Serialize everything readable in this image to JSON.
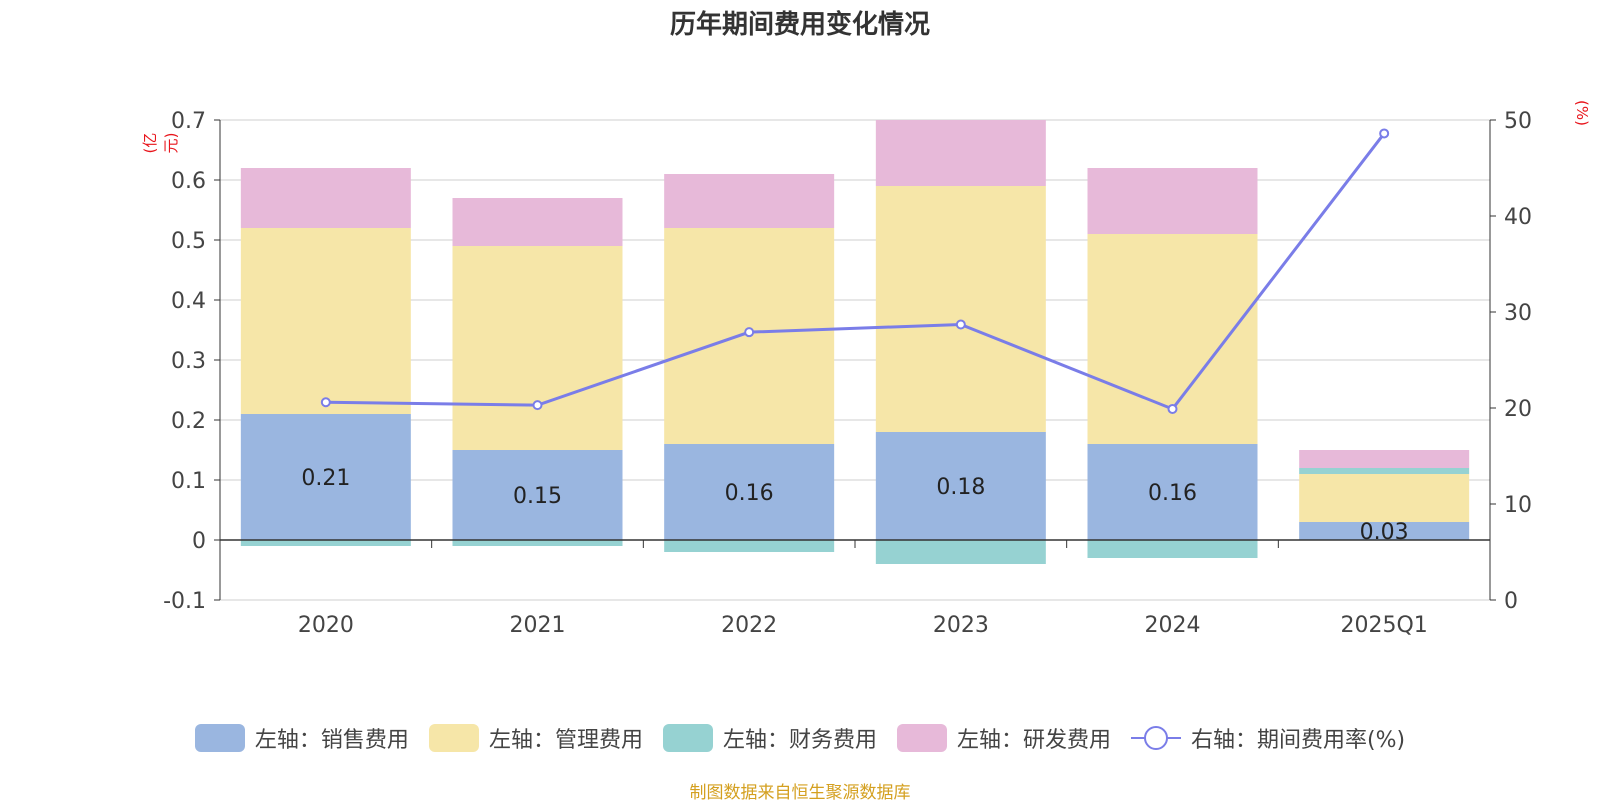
{
  "title": "历年期间费用变化情况",
  "units": {
    "left": "(亿元)",
    "right": "(%)"
  },
  "source": "制图数据来自恒生聚源数据库",
  "colors": {
    "sales": "#9ab6e0",
    "mgmt": "#f6e6a8",
    "fin": "#96d2d2",
    "rd": "#e7b9d9",
    "line": "#7a7de8",
    "accent": "#e8141b"
  },
  "chart_data": {
    "type": "bar",
    "stacked": true,
    "title": "历年期间费用变化情况",
    "categories": [
      "2020",
      "2021",
      "2022",
      "2023",
      "2024",
      "2025Q1"
    ],
    "left_axis": {
      "label": "(亿元)",
      "ylim": [
        -0.1,
        0.7
      ],
      "ticks": [
        -0.1,
        0,
        0.1,
        0.2,
        0.3,
        0.4,
        0.5,
        0.6,
        0.7
      ],
      "tick_labels": [
        "-0.1",
        "0",
        "0.1",
        "0.2",
        "0.3",
        "0.4",
        "0.5",
        "0.6",
        "0.7"
      ]
    },
    "right_axis": {
      "label": "(%)",
      "ylim": [
        0,
        50
      ],
      "ticks": [
        0,
        10,
        20,
        30,
        40,
        50
      ],
      "tick_labels": [
        "0",
        "10",
        "20",
        "30",
        "40",
        "50"
      ]
    },
    "series": [
      {
        "key": "sales",
        "name": "左轴：销售费用",
        "axis": "left",
        "type": "bar",
        "values": [
          0.21,
          0.15,
          0.16,
          0.18,
          0.16,
          0.03
        ],
        "labels": [
          "0.21",
          "0.15",
          "0.16",
          "0.18",
          "0.16",
          "0.03"
        ]
      },
      {
        "key": "mgmt",
        "name": "左轴：管理费用",
        "axis": "left",
        "type": "bar",
        "values": [
          0.31,
          0.34,
          0.36,
          0.41,
          0.35,
          0.08
        ]
      },
      {
        "key": "fin",
        "name": "左轴：财务费用",
        "axis": "left",
        "type": "bar",
        "values": [
          -0.01,
          -0.01,
          -0.02,
          -0.04,
          -0.03,
          0.01
        ]
      },
      {
        "key": "rd",
        "name": "左轴：研发费用",
        "axis": "left",
        "type": "bar",
        "values": [
          0.1,
          0.08,
          0.09,
          0.11,
          0.11,
          0.03
        ]
      },
      {
        "key": "line",
        "name": "右轴：期间费用率(%)",
        "axis": "right",
        "type": "line",
        "values": [
          20.6,
          20.3,
          27.9,
          28.7,
          19.9,
          48.6
        ]
      }
    ]
  }
}
